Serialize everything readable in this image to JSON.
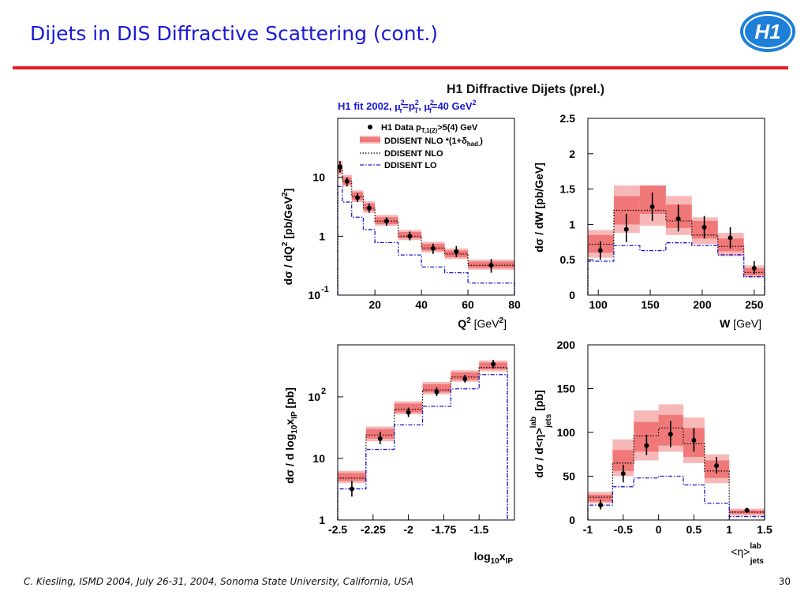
{
  "slide": {
    "title": "Dijets in DIS Diffractive Scattering (cont.)",
    "footer": "C. Kiesling, ISMD 2004, July 26-31, 2004, Sonoma State University, California, USA",
    "page_number": "30",
    "logo": "H1"
  },
  "figure": {
    "title": "H1 Diffractive Dijets (prel.)",
    "fit_note": {
      "main": "H1 fit 2002, ",
      "mu_r": "μ",
      "r2": "2",
      "rsub": "r",
      "eq": "=p",
      "pT2": "2",
      "Tsub": "T",
      "sep": ", ",
      "mu_f": "μ",
      "f2": "2",
      "fsub": "f",
      "tail": "=40 GeV",
      "g2": "2"
    },
    "legend": {
      "data": {
        "a": "H1 Data p",
        "sub": "T,1(2)",
        "b": ">5(4) GeV"
      },
      "nlo_band": {
        "a": "DDISENT NLO *(1+δ",
        "sub": "had.",
        "b": ")"
      },
      "nlo": "DDISENT NLO",
      "lo": "DDISENT LO"
    },
    "colors": {
      "band_inner": "#f07878",
      "band_outer": "#f7b8b8",
      "lo_line": "#1a1ad6",
      "accent": "#1a1ad6",
      "rule": "#e41e1e"
    }
  },
  "chart_data": [
    {
      "type": "histogram-with-points",
      "ylog": true,
      "xlabel": {
        "main": "Q",
        "sup": "2",
        "unit": " [GeV",
        "unitsup": "2",
        "close": "]"
      },
      "ylabel": {
        "a": "dσ / dQ",
        "sup": "2",
        "b": " [pb/GeV",
        "sup2": "2",
        "c": "]"
      },
      "xlim": [
        4,
        80
      ],
      "ylim": [
        0.1,
        100
      ],
      "xticks": [
        "20",
        "40",
        "60",
        "80"
      ],
      "xtick_values": [
        20,
        40,
        60,
        80
      ],
      "yticks": [
        "10",
        "1"
      ],
      "ytick_values": [
        10,
        1
      ],
      "ytick_exp": {
        "base": "10",
        "exp": "-1",
        "value": 0.1
      },
      "bins": [
        [
          4,
          6
        ],
        [
          6,
          10
        ],
        [
          10,
          15
        ],
        [
          15,
          20
        ],
        [
          20,
          30
        ],
        [
          30,
          40
        ],
        [
          40,
          50
        ],
        [
          50,
          60
        ],
        [
          60,
          80
        ]
      ],
      "points": [
        {
          "x": 5,
          "y": 15,
          "err": [
            12,
            19
          ]
        },
        {
          "x": 8,
          "y": 8.5,
          "err": [
            7,
            10
          ]
        },
        {
          "x": 12.5,
          "y": 4.5,
          "err": [
            3.8,
            5.4
          ]
        },
        {
          "x": 17.5,
          "y": 3.0,
          "err": [
            2.5,
            3.6
          ]
        },
        {
          "x": 25,
          "y": 1.8,
          "err": [
            1.5,
            2.1
          ]
        },
        {
          "x": 35,
          "y": 1.0,
          "err": [
            0.85,
            1.2
          ]
        },
        {
          "x": 45,
          "y": 0.62,
          "err": [
            0.5,
            0.75
          ]
        },
        {
          "x": 55,
          "y": 0.55,
          "err": [
            0.44,
            0.68
          ]
        },
        {
          "x": 70,
          "y": 0.32,
          "err": [
            0.24,
            0.41
          ]
        }
      ],
      "band_inner": [
        [
          12,
          17
        ],
        [
          7.5,
          10
        ],
        [
          4.1,
          5.6
        ],
        [
          2.7,
          3.6
        ],
        [
          1.6,
          2.1
        ],
        [
          0.92,
          1.18
        ],
        [
          0.57,
          0.74
        ],
        [
          0.44,
          0.57
        ],
        [
          0.29,
          0.37
        ]
      ],
      "band_outer": [
        [
          11,
          19
        ],
        [
          7,
          11
        ],
        [
          3.8,
          6.0
        ],
        [
          2.5,
          3.9
        ],
        [
          1.5,
          2.3
        ],
        [
          0.86,
          1.28
        ],
        [
          0.53,
          0.8
        ],
        [
          0.41,
          0.62
        ],
        [
          0.27,
          0.4
        ]
      ],
      "nlo": [
        14,
        8.6,
        4.7,
        3.0,
        1.8,
        1.0,
        0.63,
        0.5,
        0.32
      ],
      "lo": [
        7,
        3.8,
        2.1,
        1.3,
        0.78,
        0.48,
        0.3,
        0.24,
        0.16
      ]
    },
    {
      "type": "histogram-with-points",
      "ylog": false,
      "xlabel": {
        "main": "W",
        "unit": " [GeV]"
      },
      "ylabel": {
        "a": "dσ / dW [pb/GeV]"
      },
      "xlim": [
        90,
        260
      ],
      "ylim": [
        0,
        2.5
      ],
      "xticks": [
        "100",
        "150",
        "200",
        "250"
      ],
      "xtick_values": [
        100,
        150,
        200,
        250
      ],
      "yticks": [
        "2.5",
        "2",
        "1.5",
        "1",
        "0.5",
        "0"
      ],
      "ytick_values": [
        2.5,
        2,
        1.5,
        1,
        0.5,
        0
      ],
      "bins": [
        [
          90,
          115
        ],
        [
          115,
          140
        ],
        [
          140,
          165
        ],
        [
          165,
          190
        ],
        [
          190,
          215
        ],
        [
          215,
          240
        ],
        [
          240,
          260
        ]
      ],
      "points": [
        {
          "x": 102,
          "y": 0.63,
          "err": [
            0.5,
            0.76
          ]
        },
        {
          "x": 127,
          "y": 0.93,
          "err": [
            0.75,
            1.15
          ]
        },
        {
          "x": 152,
          "y": 1.25,
          "err": [
            1.05,
            1.45
          ]
        },
        {
          "x": 177,
          "y": 1.08,
          "err": [
            0.9,
            1.28
          ]
        },
        {
          "x": 202,
          "y": 0.96,
          "err": [
            0.8,
            1.12
          ]
        },
        {
          "x": 227,
          "y": 0.81,
          "err": [
            0.66,
            0.96
          ]
        },
        {
          "x": 250,
          "y": 0.38,
          "err": [
            0.3,
            0.48
          ]
        }
      ],
      "band_inner": [
        [
          0.6,
          0.85
        ],
        [
          1.0,
          1.4
        ],
        [
          1.15,
          1.55
        ],
        [
          0.95,
          1.28
        ],
        [
          0.8,
          1.05
        ],
        [
          0.62,
          0.8
        ],
        [
          0.28,
          0.38
        ]
      ],
      "band_outer": [
        [
          0.53,
          0.92
        ],
        [
          0.88,
          1.55
        ],
        [
          0.98,
          1.55
        ],
        [
          0.85,
          1.4
        ],
        [
          0.72,
          1.1
        ],
        [
          0.55,
          0.88
        ],
        [
          0.25,
          0.42
        ]
      ],
      "nlo": [
        0.72,
        1.2,
        1.2,
        1.05,
        0.85,
        0.69,
        0.32
      ],
      "lo": [
        0.48,
        0.7,
        0.63,
        0.74,
        0.7,
        0.57,
        0.26
      ]
    },
    {
      "type": "histogram-with-points",
      "ylog": true,
      "xlabel": {
        "main": "log",
        "sub": "10",
        "main2": "x",
        "sub2": "IP"
      },
      "ylabel": {
        "a": "dσ / d log",
        "sub": "10",
        "b": "x",
        "sub2": "IP",
        "c": " [pb]"
      },
      "xlim": [
        -2.5,
        -1.25
      ],
      "ylim": [
        1,
        700
      ],
      "xticks": [
        "-2.5",
        "-2.25",
        "-2",
        "-1.75",
        "-1.5"
      ],
      "xtick_values": [
        -2.5,
        -2.25,
        -2,
        -1.75,
        -1.5
      ],
      "yticks": [
        "10",
        "1"
      ],
      "ytick_values": [
        10,
        1
      ],
      "ytick_exp": {
        "base": "10",
        "exp": "2",
        "value": 100
      },
      "bins": [
        [
          -2.5,
          -2.3
        ],
        [
          -2.3,
          -2.1
        ],
        [
          -2.1,
          -1.9
        ],
        [
          -1.9,
          -1.7
        ],
        [
          -1.7,
          -1.5
        ],
        [
          -1.5,
          -1.3
        ]
      ],
      "points": [
        {
          "x": -2.4,
          "y": 3.2,
          "err": [
            2.4,
            4.3
          ]
        },
        {
          "x": -2.2,
          "y": 21,
          "err": [
            17,
            27
          ]
        },
        {
          "x": -2.0,
          "y": 56,
          "err": [
            47,
            67
          ]
        },
        {
          "x": -1.8,
          "y": 120,
          "err": [
            103,
            142
          ]
        },
        {
          "x": -1.6,
          "y": 195,
          "err": [
            170,
            228
          ]
        },
        {
          "x": -1.4,
          "y": 340,
          "err": [
            290,
            400
          ]
        }
      ],
      "band_inner": [
        [
          4.3,
          5.8
        ],
        [
          21,
          30
        ],
        [
          56,
          78
        ],
        [
          118,
          160
        ],
        [
          188,
          250
        ],
        [
          280,
          360
        ]
      ],
      "band_outer": [
        [
          4.0,
          6.3
        ],
        [
          19,
          33
        ],
        [
          52,
          85
        ],
        [
          110,
          175
        ],
        [
          176,
          270
        ],
        [
          260,
          390
        ]
      ],
      "nlo": [
        4.8,
        24,
        63,
        130,
        210,
        300
      ],
      "lo": [
        3.2,
        14,
        35,
        70,
        135,
        230
      ]
    },
    {
      "type": "histogram-with-points",
      "ylog": false,
      "xlabel": {
        "a": "<η>",
        "sup": "lab",
        "sub": "jets"
      },
      "ylabel": {
        "a": "dσ / d<η>",
        "sup": "lab",
        "sub": "jets",
        "c": " [pb]"
      },
      "xlim": [
        -1,
        1.5
      ],
      "ylim": [
        0,
        200
      ],
      "xticks": [
        "-1",
        "-0.5",
        "0",
        "0.5",
        "1",
        "1.5"
      ],
      "xtick_values": [
        -1,
        -0.5,
        0,
        0.5,
        1,
        1.5
      ],
      "yticks": [
        "200",
        "150",
        "100",
        "50",
        "0"
      ],
      "ytick_values": [
        200,
        150,
        100,
        50,
        0
      ],
      "bins": [
        [
          -1,
          -0.65
        ],
        [
          -0.65,
          -0.35
        ],
        [
          -0.35,
          0
        ],
        [
          0,
          0.35
        ],
        [
          0.35,
          0.65
        ],
        [
          0.65,
          1.0
        ],
        [
          1.0,
          1.5
        ]
      ],
      "points": [
        {
          "x": -0.82,
          "y": 17,
          "err": [
            12,
            23
          ]
        },
        {
          "x": -0.5,
          "y": 53,
          "err": [
            43,
            63
          ]
        },
        {
          "x": -0.17,
          "y": 85,
          "err": [
            74,
            97
          ]
        },
        {
          "x": 0.17,
          "y": 98,
          "err": [
            83,
            113
          ]
        },
        {
          "x": 0.5,
          "y": 91,
          "err": [
            78,
            105
          ]
        },
        {
          "x": 0.82,
          "y": 62,
          "err": [
            53,
            72
          ]
        },
        {
          "x": 1.25,
          "y": 11,
          "err": [
            8,
            14
          ]
        }
      ],
      "band_inner": [
        [
          21,
          29
        ],
        [
          56,
          80
        ],
        [
          78,
          112
        ],
        [
          85,
          120
        ],
        [
          72,
          105
        ],
        [
          48,
          68
        ],
        [
          7,
          11
        ]
      ],
      "band_outer": [
        [
          19,
          32
        ],
        [
          50,
          92
        ],
        [
          68,
          125
        ],
        [
          78,
          132
        ],
        [
          65,
          117
        ],
        [
          42,
          75
        ],
        [
          5,
          13
        ]
      ],
      "nlo": [
        26,
        65,
        96,
        105,
        87,
        56,
        9
      ],
      "lo": [
        17,
        38,
        48,
        50,
        40,
        19,
        4
      ]
    }
  ]
}
